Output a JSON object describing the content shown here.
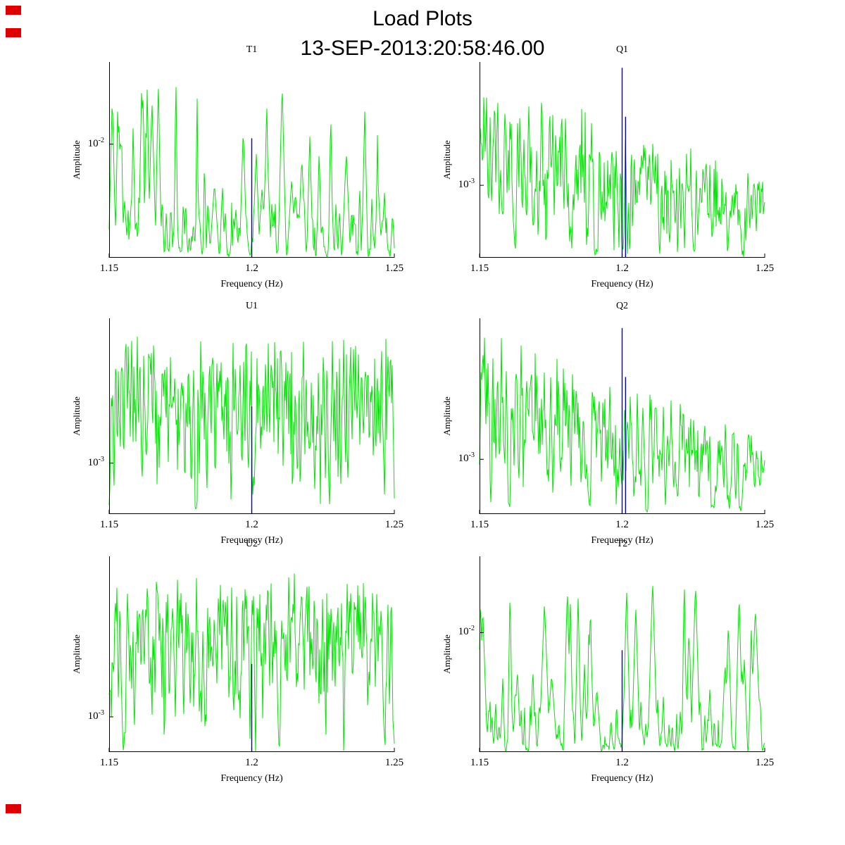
{
  "header": {
    "title": "Load Plots",
    "timestamp": "13-SEP-2013:20:58:46.00"
  },
  "colors": {
    "series_green": "#00e600",
    "spike_blue": "#0000cd",
    "axis_black": "#000000",
    "marker_red": "#dd0000",
    "background": "#ffffff"
  },
  "chart_data": [
    {
      "type": "line",
      "title": "T1",
      "xlabel": "Frequency (Hz)",
      "ylabel": "Amplitude",
      "xlim": [
        1.15,
        1.25
      ],
      "x_ticks": [
        1.15,
        1.2,
        1.25
      ],
      "x_tick_labels": [
        "1.15",
        "1.2",
        "1.25"
      ],
      "y_scale": "log",
      "y_tick": {
        "base": "10",
        "exp": "-2",
        "pos": 0.42
      },
      "legend": null,
      "grid": false,
      "seed": 101,
      "baseline": 0.05,
      "envelope": "flat",
      "peak_sets": [
        {
          "n": 55,
          "w": [
            2,
            7
          ],
          "h": [
            0.15,
            0.97
          ],
          "pow": 1.1
        },
        {
          "n": 150,
          "w": [
            1,
            3
          ],
          "h": [
            0.02,
            0.32
          ],
          "pow": 1.0
        }
      ],
      "spikes": [
        {
          "x": 1.2,
          "top_frac": 0.61
        }
      ]
    },
    {
      "type": "line",
      "title": "Q1",
      "xlabel": "Frequency (Hz)",
      "ylabel": "Amplitude",
      "xlim": [
        1.15,
        1.25
      ],
      "x_ticks": [
        1.15,
        1.2,
        1.25
      ],
      "x_tick_labels": [
        "1.15",
        "1.2",
        "1.25"
      ],
      "y_scale": "log",
      "y_tick": {
        "base": "10",
        "exp": "-3",
        "pos": 0.63
      },
      "legend": null,
      "grid": false,
      "seed": 202,
      "baseline": 0.05,
      "envelope": "decay",
      "peak_sets": [
        {
          "n": 380,
          "w": [
            1,
            3.5
          ],
          "h": [
            0.05,
            0.97
          ],
          "pow": 0.9
        }
      ],
      "spikes": [
        {
          "x": 1.2,
          "top_frac": 0.97
        },
        {
          "x": 1.2012,
          "top_frac": 0.72
        }
      ]
    },
    {
      "type": "line",
      "title": "U1",
      "xlabel": "Frequency (Hz)",
      "ylabel": "Amplitude",
      "xlim": [
        1.15,
        1.25
      ],
      "x_ticks": [
        1.15,
        1.2,
        1.25
      ],
      "x_tick_labels": [
        "1.15",
        "1.2",
        "1.25"
      ],
      "y_scale": "log",
      "y_tick": {
        "base": "10",
        "exp": "-3",
        "pos": 0.74
      },
      "legend": null,
      "grid": false,
      "seed": 303,
      "baseline": 0.05,
      "envelope": "flat",
      "peak_sets": [
        {
          "n": 430,
          "w": [
            1,
            3.5
          ],
          "h": [
            0.05,
            0.93
          ],
          "pow": 0.8
        }
      ],
      "spikes": [
        {
          "x": 1.2,
          "top_frac": 0.55
        }
      ]
    },
    {
      "type": "line",
      "title": "Q2",
      "xlabel": "Frequency (Hz)",
      "ylabel": "Amplitude",
      "xlim": [
        1.15,
        1.25
      ],
      "x_ticks": [
        1.15,
        1.2,
        1.25
      ],
      "x_tick_labels": [
        "1.15",
        "1.2",
        "1.25"
      ],
      "y_scale": "log",
      "y_tick": {
        "base": "10",
        "exp": "-3",
        "pos": 0.72
      },
      "legend": null,
      "grid": false,
      "seed": 404,
      "baseline": 0.05,
      "envelope": "decay",
      "peak_sets": [
        {
          "n": 380,
          "w": [
            1,
            3.5
          ],
          "h": [
            0.05,
            0.97
          ],
          "pow": 0.9
        }
      ],
      "spikes": [
        {
          "x": 1.2,
          "top_frac": 0.95
        },
        {
          "x": 1.2012,
          "top_frac": 0.7
        }
      ]
    },
    {
      "type": "line",
      "title": "U2",
      "xlabel": "Frequency (Hz)",
      "ylabel": "Amplitude",
      "xlim": [
        1.15,
        1.25
      ],
      "x_ticks": [
        1.15,
        1.2,
        1.25
      ],
      "x_tick_labels": [
        "1.15",
        "1.2",
        "1.25"
      ],
      "y_scale": "log",
      "y_tick": {
        "base": "10",
        "exp": "-3",
        "pos": 0.82
      },
      "legend": null,
      "grid": false,
      "seed": 505,
      "baseline": 0.05,
      "envelope": "flat",
      "peak_sets": [
        {
          "n": 430,
          "w": [
            1,
            3.5
          ],
          "h": [
            0.05,
            0.93
          ],
          "pow": 0.8
        }
      ],
      "spikes": [
        {
          "x": 1.2,
          "top_frac": 0.45
        }
      ]
    },
    {
      "type": "line",
      "title": "T2",
      "xlabel": "Frequency (Hz)",
      "ylabel": "Amplitude",
      "xlim": [
        1.15,
        1.25
      ],
      "x_ticks": [
        1.15,
        1.2,
        1.25
      ],
      "x_tick_labels": [
        "1.15",
        "1.2",
        "1.25"
      ],
      "y_scale": "log",
      "y_tick": {
        "base": "10",
        "exp": "-2",
        "pos": 0.39
      },
      "legend": null,
      "grid": false,
      "seed": 606,
      "baseline": 0.05,
      "envelope": "flat",
      "peak_sets": [
        {
          "n": 42,
          "w": [
            2.5,
            8
          ],
          "h": [
            0.15,
            0.95
          ],
          "pow": 1.1
        },
        {
          "n": 110,
          "w": [
            1,
            3
          ],
          "h": [
            0.02,
            0.3
          ],
          "pow": 1.0
        }
      ],
      "spikes": [
        {
          "x": 1.2,
          "top_frac": 0.52
        }
      ]
    }
  ]
}
